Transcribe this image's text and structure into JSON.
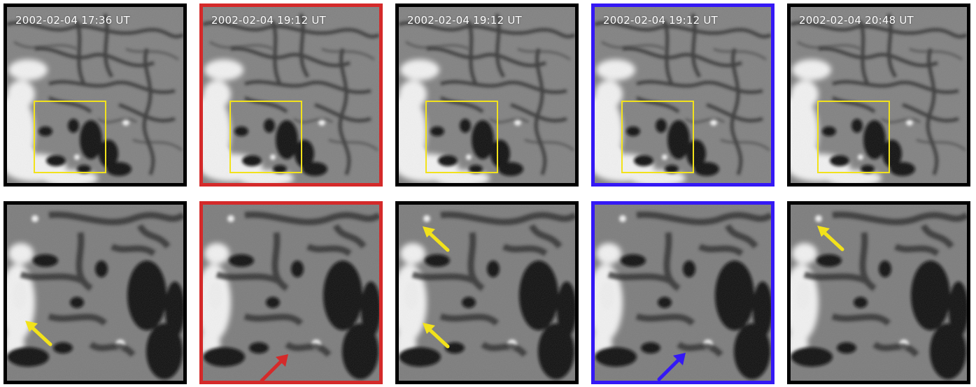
{
  "figure": {
    "colors": {
      "black_frame": "#000000",
      "red_frame": "#d42a2a",
      "blue_frame": "#3418f5",
      "roi_box": "#f2e21b",
      "yellow_arrow": "#f2e21b",
      "red_arrow": "#d42a2a",
      "blue_arrow": "#3418f5",
      "timestamp_text": "#ffffff"
    },
    "top_row": [
      {
        "timestamp": "2002-02-04 17:36 UT",
        "frame": "black"
      },
      {
        "timestamp": "2002-02-04 19:12 UT",
        "frame": "red"
      },
      {
        "timestamp": "2002-02-04 19:12 UT",
        "frame": "black"
      },
      {
        "timestamp": "2002-02-04 19:12 UT",
        "frame": "blue"
      },
      {
        "timestamp": "2002-02-04 20:48 UT",
        "frame": "black"
      }
    ],
    "bottom_row": [
      {
        "frame": "black",
        "arrows": [
          "yellow"
        ]
      },
      {
        "frame": "red",
        "arrows": [
          "red"
        ]
      },
      {
        "frame": "black",
        "arrows": [
          "yellow",
          "yellow"
        ]
      },
      {
        "frame": "blue",
        "arrows": [
          "blue"
        ]
      },
      {
        "frame": "black",
        "arrows": [
          "yellow"
        ]
      }
    ],
    "icons": {
      "arrow": "arrow-icon",
      "roi": "region-of-interest-box"
    }
  }
}
